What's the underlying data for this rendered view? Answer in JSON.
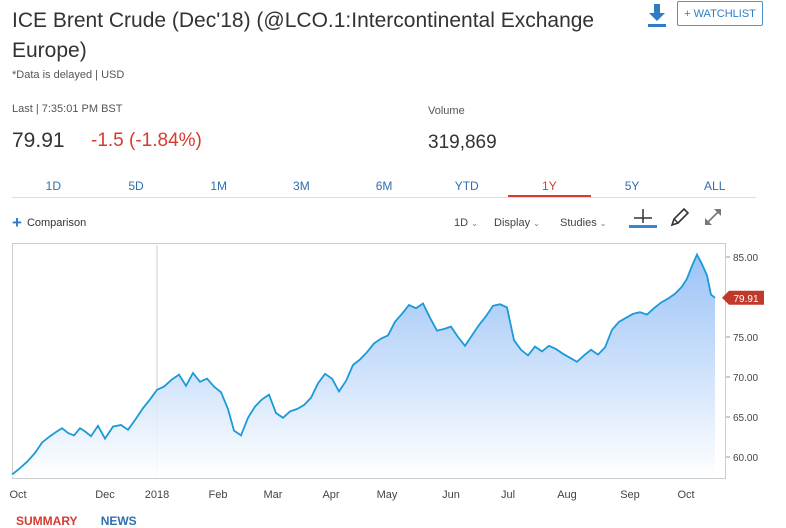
{
  "header": {
    "title": "ICE Brent Crude (Dec'18) (@LCO.1:Intercontinental Exchange Europe)",
    "delayed_note": "*Data is delayed | USD",
    "watchlist_label": "+ WATCHLIST",
    "download_icon": "download-icon"
  },
  "quote": {
    "last_label": "Last | 7:35:01 PM BST",
    "price": "79.91",
    "change": "-1.5 (-1.84%)",
    "volume_label": "Volume",
    "volume": "319,869",
    "change_color": "#d63b2f"
  },
  "range_tabs": [
    {
      "label": "1D",
      "active": false
    },
    {
      "label": "5D",
      "active": false
    },
    {
      "label": "1M",
      "active": false
    },
    {
      "label": "3M",
      "active": false
    },
    {
      "label": "6M",
      "active": false
    },
    {
      "label": "YTD",
      "active": false
    },
    {
      "label": "1Y",
      "active": true
    },
    {
      "label": "5Y",
      "active": false
    },
    {
      "label": "ALL",
      "active": false
    }
  ],
  "toolbar": {
    "comparison_label": "Comparison",
    "interval_label": "1D",
    "display_label": "Display",
    "studies_label": "Studies",
    "crosshair_icon": "crosshair-icon",
    "draw_icon": "pencil-icon",
    "expand_icon": "expand-icon"
  },
  "chart_data": {
    "type": "area",
    "x_labels": [
      "Oct",
      "Dec",
      "2018",
      "Feb",
      "Mar",
      "Apr",
      "May",
      "Jun",
      "Jul",
      "Aug",
      "Sep",
      "Oct"
    ],
    "y_ticks": [
      "85.00",
      "80.00",
      "75.00",
      "70.00",
      "65.00",
      "60.00"
    ],
    "ylim": [
      57.5,
      86.5
    ],
    "last_value_label": "79.91",
    "line_color": "#1a9ad6",
    "fill_color": "#8ab9f5",
    "grid": "x-at-2018",
    "x": [
      0,
      7,
      15,
      23,
      30,
      38,
      45,
      50,
      56,
      62,
      68,
      73,
      79,
      86,
      93,
      101,
      109,
      116,
      124,
      131,
      138,
      145,
      152,
      160,
      167,
      174,
      181,
      188,
      195,
      202,
      209,
      216,
      222,
      229,
      236,
      243,
      250,
      257,
      264,
      271,
      278,
      285,
      292,
      299,
      306,
      313,
      320,
      327,
      334,
      341,
      348,
      355,
      362,
      369,
      376,
      383,
      390,
      397,
      404,
      411,
      418,
      425,
      432,
      439,
      446,
      453,
      460,
      467,
      474,
      481,
      488,
      495,
      502,
      509,
      516,
      523,
      530,
      537,
      544,
      551,
      558,
      565,
      572,
      579,
      586,
      593,
      600,
      607,
      614,
      621,
      628,
      635,
      642,
      649,
      656,
      663,
      670,
      675,
      680,
      685,
      690,
      695,
      699,
      703
    ],
    "values": [
      57.8,
      58.5,
      59.4,
      60.5,
      61.8,
      62.6,
      63.2,
      63.6,
      63.0,
      62.7,
      63.6,
      63.2,
      62.6,
      63.9,
      62.3,
      63.8,
      64.0,
      63.4,
      64.8,
      66.1,
      67.2,
      68.4,
      68.8,
      69.7,
      70.3,
      68.9,
      70.5,
      69.4,
      69.8,
      68.8,
      68.1,
      66.0,
      63.3,
      62.7,
      64.9,
      66.3,
      67.2,
      67.8,
      65.5,
      64.9,
      65.7,
      66.0,
      66.5,
      67.4,
      69.2,
      70.4,
      69.8,
      68.2,
      69.5,
      71.5,
      72.2,
      73.1,
      74.2,
      74.8,
      75.2,
      76.9,
      77.9,
      79.0,
      78.6,
      79.2,
      77.4,
      75.8,
      76.0,
      76.3,
      75.0,
      73.9,
      75.2,
      76.5,
      77.6,
      78.9,
      79.1,
      78.7,
      74.6,
      73.4,
      72.7,
      73.8,
      73.2,
      73.9,
      73.5,
      72.9,
      72.4,
      71.9,
      72.7,
      73.4,
      72.8,
      73.7,
      75.9,
      76.9,
      77.4,
      77.9,
      78.1,
      77.8,
      78.6,
      79.3,
      79.8,
      80.4,
      81.3,
      82.3,
      83.9,
      85.3,
      84.1,
      82.7,
      80.3,
      79.9
    ]
  },
  "bottom_tabs": {
    "summary_label": "SUMMARY",
    "news_label": "NEWS"
  }
}
